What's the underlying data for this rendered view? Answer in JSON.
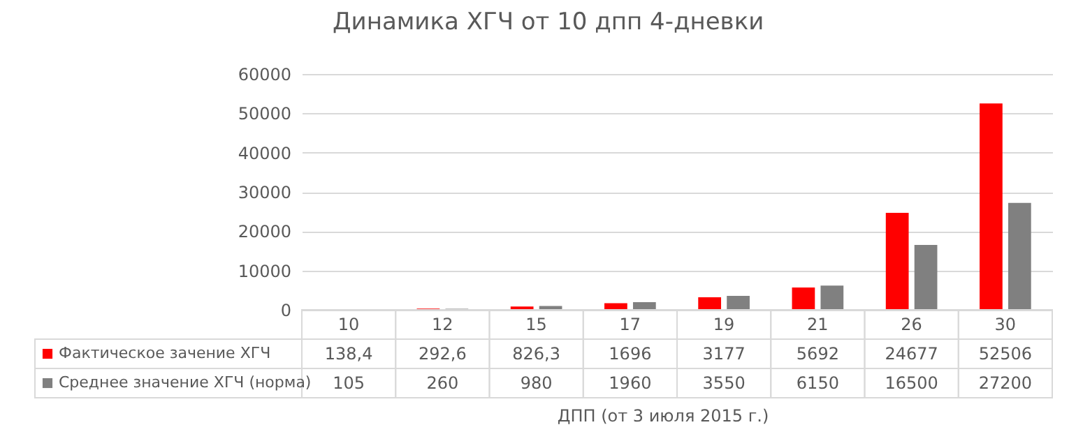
{
  "chart_data": {
    "type": "bar",
    "title": "Динамика ХГЧ от 10 дпп 4-дневки",
    "xlabel": "ДПП (от  3 июля 2015 г.)",
    "categories": [
      "10",
      "12",
      "15",
      "17",
      "19",
      "21",
      "26",
      "30"
    ],
    "series": [
      {
        "name": "Фактическое зачение ХГЧ",
        "color": "#ff0000",
        "values": [
          138.4,
          292.6,
          826.3,
          1696,
          3177,
          5692,
          24677,
          52506
        ],
        "value_labels": [
          "138,4",
          "292,6",
          "826,3",
          "1696",
          "3177",
          "5692",
          "24677",
          "52506"
        ]
      },
      {
        "name": "Среднее значение ХГЧ (норма)",
        "color": "#808080",
        "values": [
          105,
          260,
          980,
          1960,
          3550,
          6150,
          16500,
          27200
        ],
        "value_labels": [
          "105",
          "260",
          "980",
          "1960",
          "3550",
          "6150",
          "16500",
          "27200"
        ]
      }
    ],
    "ylim": [
      0,
      60000
    ],
    "yticks": [
      0,
      10000,
      20000,
      30000,
      40000,
      50000,
      60000
    ],
    "grid": "y",
    "legend": "bottom"
  }
}
